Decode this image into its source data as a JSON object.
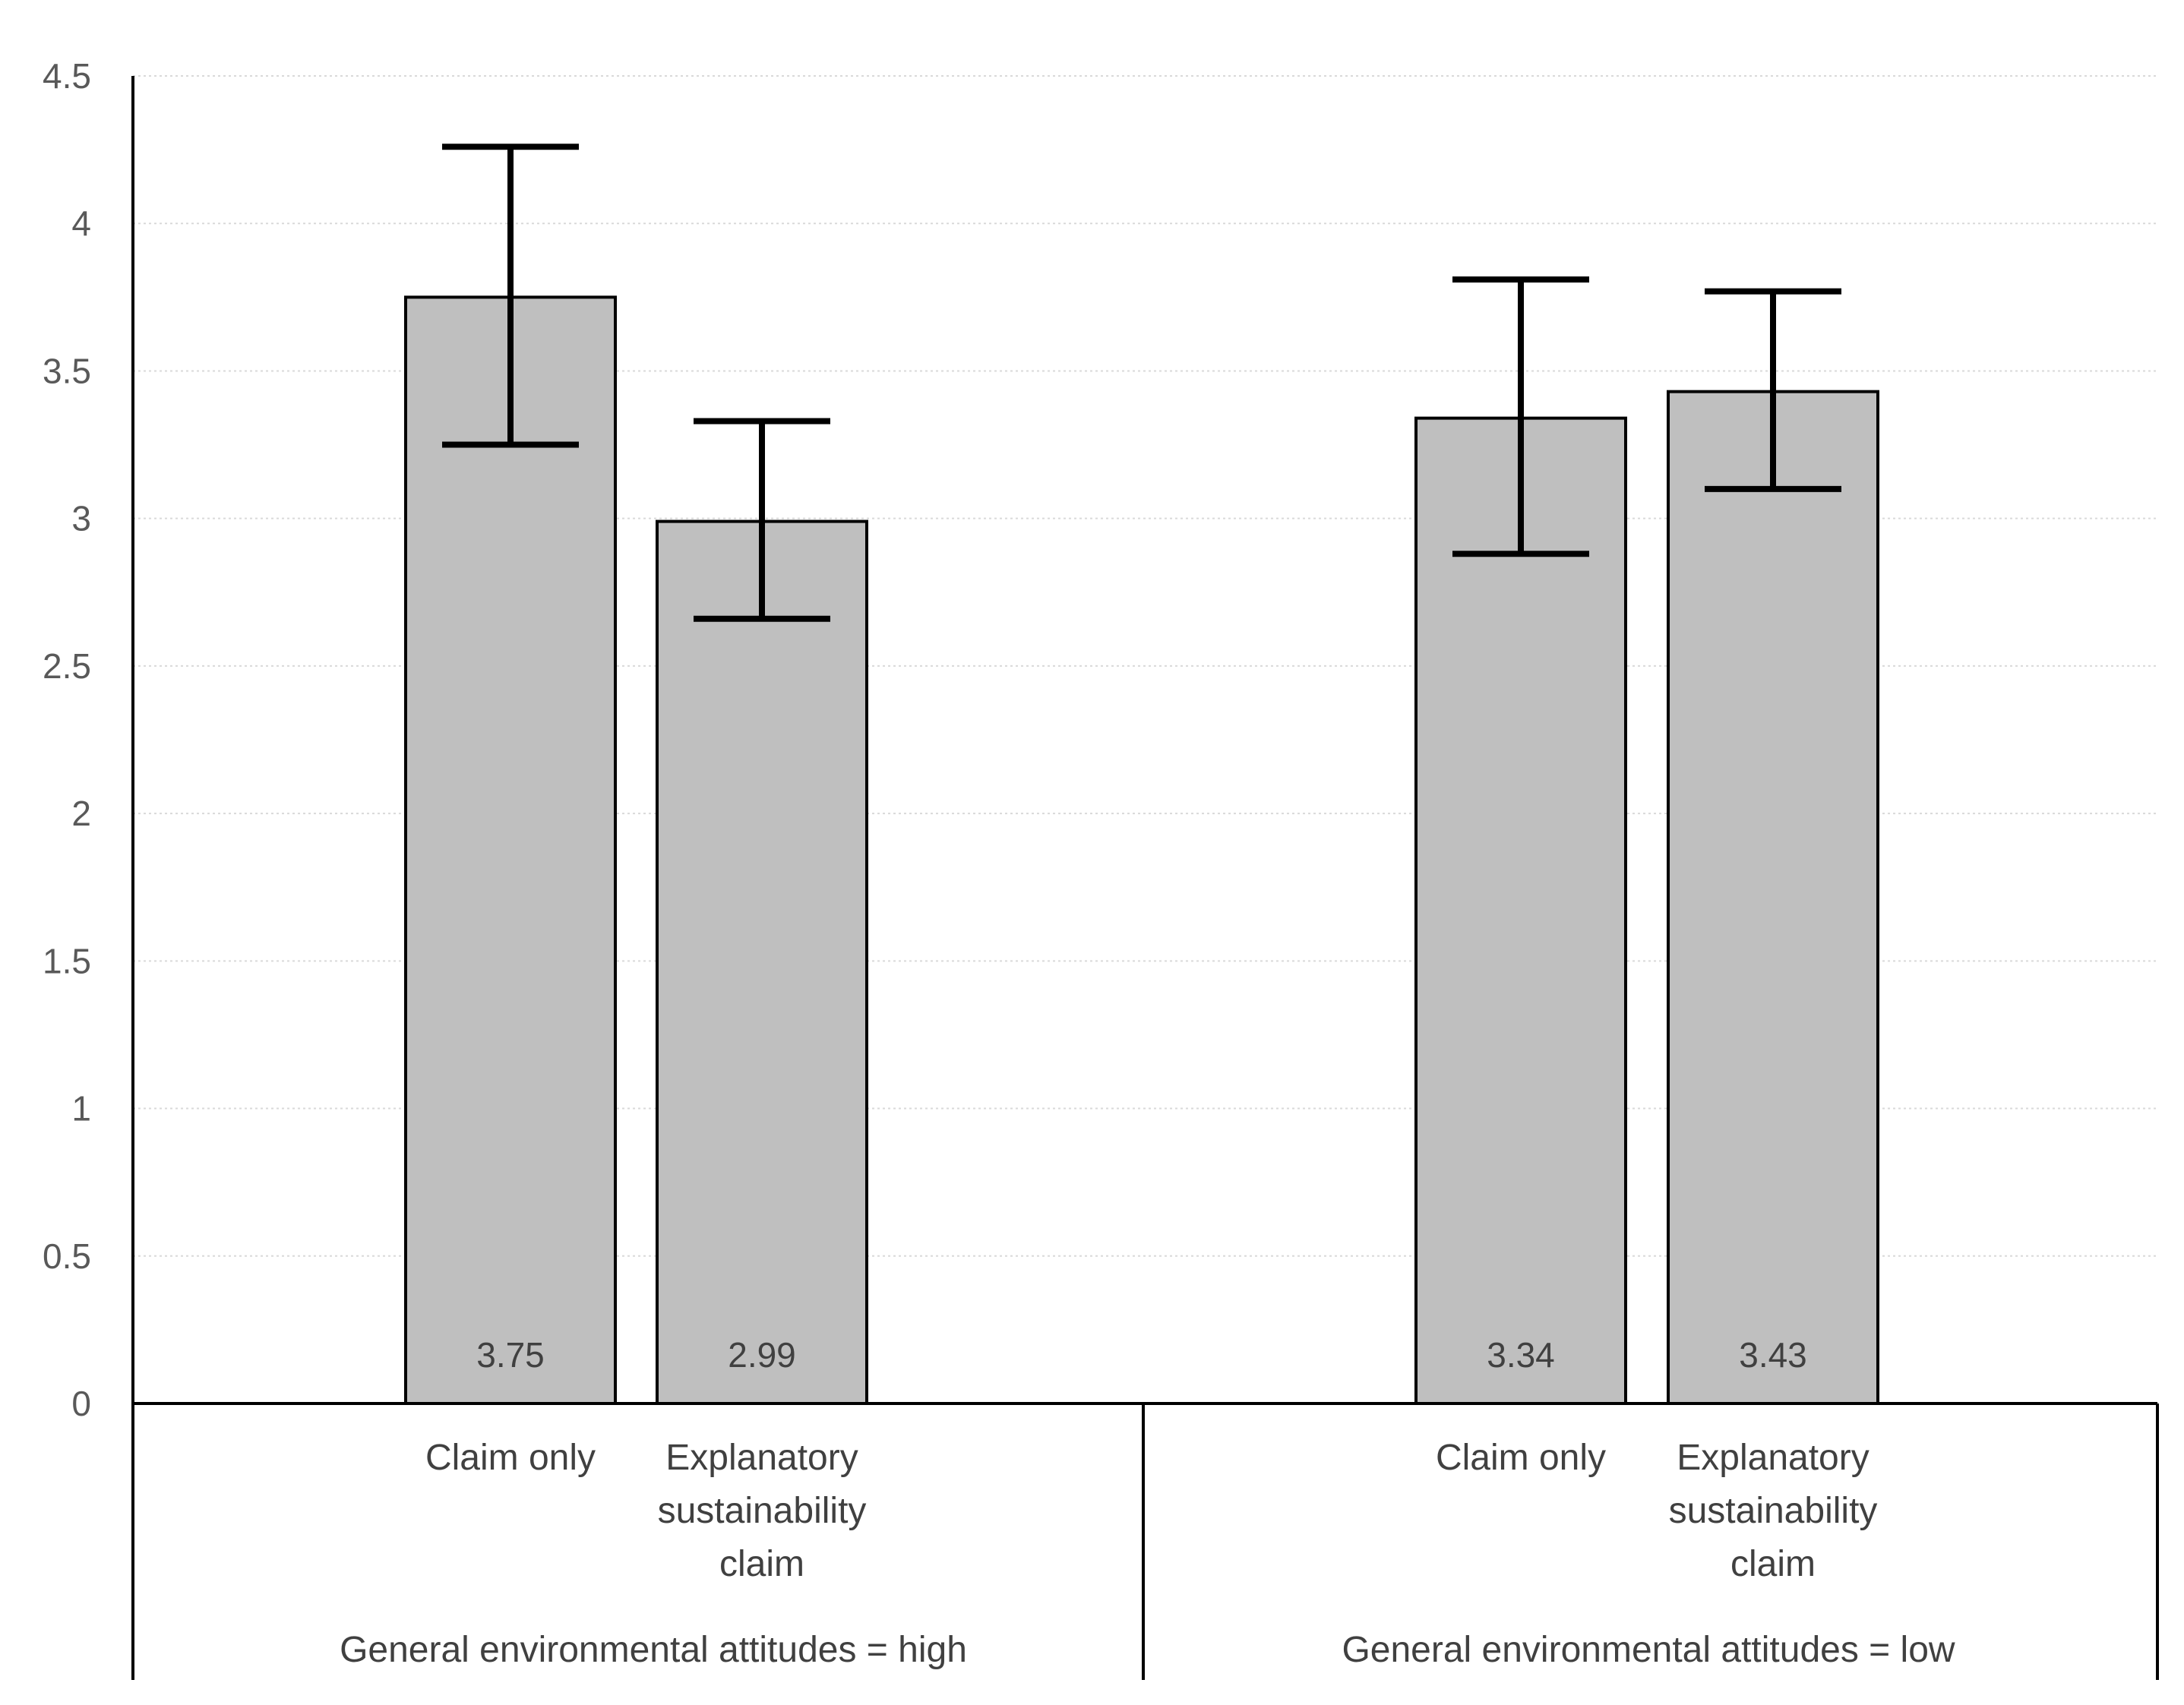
{
  "chart_data": {
    "type": "bar",
    "title": "",
    "xlabel": "",
    "ylabel": "",
    "ylim": [
      0,
      4.5
    ],
    "yticks": [
      "0",
      "0.5",
      "1",
      "1.5",
      "2",
      "2.5",
      "3",
      "3.5",
      "4",
      "4.5"
    ],
    "grid": true,
    "groups": [
      {
        "label": "General environmental attitudes = high",
        "bars": [
          {
            "category": [
              "Claim only"
            ],
            "value": 3.75,
            "label": "3.75",
            "error_low": 3.25,
            "error_high": 4.26
          },
          {
            "category": [
              "Explanatory",
              "sustainability",
              "claim"
            ],
            "value": 2.99,
            "label": "2.99",
            "error_low": 2.66,
            "error_high": 3.33
          }
        ]
      },
      {
        "label": "General environmental attitudes = low",
        "bars": [
          {
            "category": [
              "Claim only"
            ],
            "value": 3.34,
            "label": "3.34",
            "error_low": 2.88,
            "error_high": 3.81
          },
          {
            "category": [
              "Explanatory",
              "sustainability",
              "claim"
            ],
            "value": 3.43,
            "label": "3.43",
            "error_low": 3.1,
            "error_high": 3.77
          }
        ]
      }
    ],
    "colors": {
      "bar_fill": "#bfbfbf",
      "bar_stroke": "#000000",
      "gridline": "#d9d9d9"
    }
  }
}
